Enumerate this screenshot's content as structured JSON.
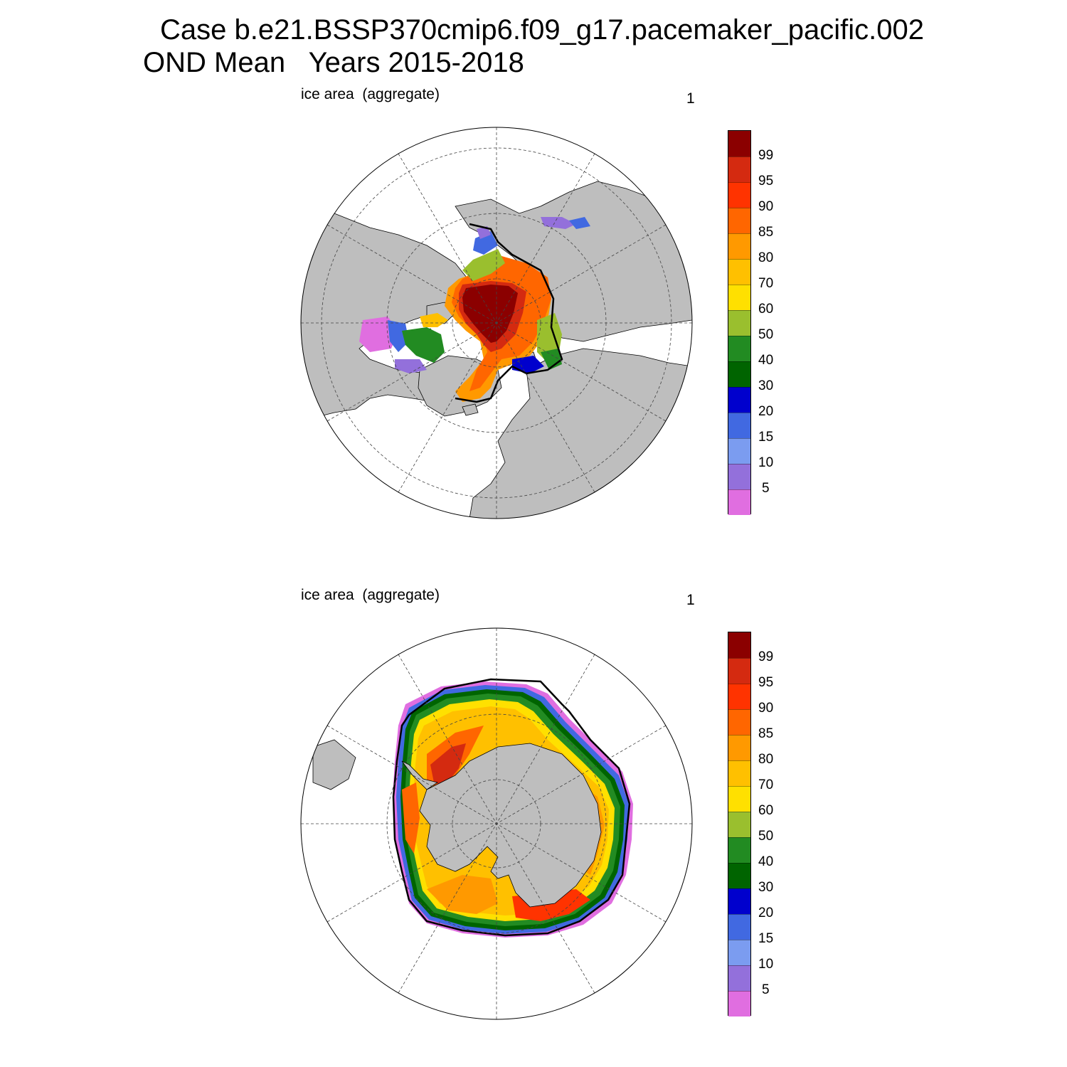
{
  "title": {
    "line1": "Case b.e21.BSSP370cmip6.f09_g17.pacemaker_pacific.002",
    "line2": "OND Mean   Years 2015-2018"
  },
  "panels": [
    {
      "label": "ice area  (aggregate)",
      "number": "1",
      "hemisphere": "north"
    },
    {
      "label": "ice area  (aggregate)",
      "number": "1",
      "hemisphere": "south"
    }
  ],
  "colorbar": {
    "labels": [
      "99",
      "95",
      "90",
      "85",
      "80",
      "70",
      "60",
      "50",
      "40",
      "30",
      "20",
      "15",
      "10",
      "5"
    ],
    "colors": [
      "#8b0000",
      "#d42a10",
      "#ff3300",
      "#ff6600",
      "#ff9900",
      "#ffc000",
      "#ffe000",
      "#9abf2e",
      "#228b22",
      "#006400",
      "#0000cd",
      "#4169e1",
      "#7b9cf0",
      "#9370db",
      "#e06ee0"
    ]
  },
  "map_colors": {
    "land": "#bebebe",
    "ocean": "#ffffff",
    "grid": "#444444"
  }
}
